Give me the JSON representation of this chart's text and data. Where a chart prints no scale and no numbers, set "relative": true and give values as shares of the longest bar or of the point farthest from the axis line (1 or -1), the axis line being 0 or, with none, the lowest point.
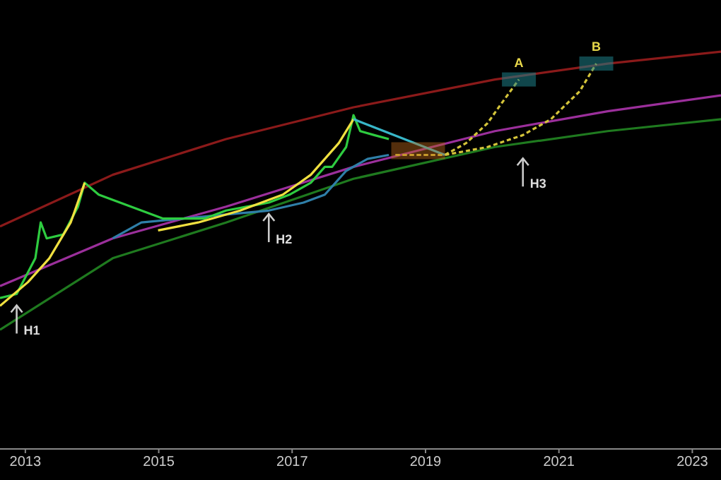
{
  "chart_data": {
    "type": "line",
    "relative": true,
    "xlim": [
      2012.62,
      2023.43
    ],
    "xticks": [
      2013,
      2015,
      2017,
      2019,
      2021,
      2023
    ],
    "series": [
      {
        "color": "#8b1a1a",
        "x": [
          2012.62,
          2014.31,
          2016.01,
          2017.92,
          2020.04,
          2021.73,
          2023.43
        ],
        "values": [
          0.56,
          0.69,
          0.78,
          0.86,
          0.93,
          0.97,
          1.0
        ]
      },
      {
        "color": "#9b2f9b",
        "x": [
          2012.62,
          2014.31,
          2016.01,
          2017.92,
          2020.04,
          2021.73,
          2023.43
        ],
        "values": [
          0.41,
          0.53,
          0.61,
          0.71,
          0.8,
          0.85,
          0.89
        ]
      },
      {
        "color": "#1f7a1f",
        "x": [
          2012.62,
          2014.31,
          2016.01,
          2017.92,
          2020.04,
          2021.73,
          2023.43
        ],
        "values": [
          0.3,
          0.48,
          0.57,
          0.68,
          0.76,
          0.8,
          0.83
        ]
      },
      {
        "color": "#2f7fa8",
        "x": [
          2014.31,
          2014.74,
          2015.37,
          2016.01,
          2016.65,
          2017.17,
          2017.49,
          2017.81,
          2018.13,
          2018.45
        ],
        "values": [
          0.53,
          0.57,
          0.58,
          0.59,
          0.6,
          0.62,
          0.64,
          0.7,
          0.73,
          0.74
        ]
      },
      {
        "color": "#2ecc40",
        "x": [
          2012.62,
          2012.87,
          2013.15,
          2013.23,
          2013.32,
          2013.57,
          2013.79,
          2013.89,
          2014.1,
          2014.42,
          2014.74,
          2015.06,
          2015.37,
          2015.69,
          2016.01,
          2016.33,
          2016.65,
          2016.96,
          2017.28,
          2017.49,
          2017.6,
          2017.81,
          2017.92,
          2018.02,
          2018.23,
          2018.45
        ],
        "values": [
          0.38,
          0.39,
          0.48,
          0.57,
          0.53,
          0.54,
          0.61,
          0.67,
          0.64,
          0.62,
          0.6,
          0.58,
          0.58,
          0.58,
          0.6,
          0.61,
          0.62,
          0.64,
          0.67,
          0.71,
          0.71,
          0.76,
          0.84,
          0.8,
          0.79,
          0.78
        ]
      },
      {
        "color": "#f0e040",
        "x": [
          2012.62,
          2013.04,
          2013.36,
          2013.68,
          2013.89,
          2014.4,
          2014.99,
          2015.59,
          2016.22,
          2016.86,
          2017.28,
          2017.7,
          2017.92
        ],
        "values": [
          0.36,
          0.42,
          0.48,
          0.57,
          0.67,
          null,
          0.55,
          0.57,
          0.6,
          0.64,
          0.69,
          0.77,
          0.83
        ]
      },
      {
        "color": "#38b6c8",
        "x": [
          2017.92,
          2019.29
        ],
        "values": [
          0.83,
          0.74
        ]
      },
      {
        "color": "#d4c43a",
        "line_style": "dashed",
        "x": [
          2018.55,
          2018.98,
          2019.29,
          2019.61,
          2019.93,
          2020.14,
          2020.4
        ],
        "values": [
          0.74,
          0.74,
          0.74,
          0.77,
          0.82,
          0.87,
          0.93
        ]
      },
      {
        "color": "#d4c43a",
        "line_style": "dashed",
        "x": [
          2018.55,
          2019.29,
          2019.93,
          2020.46,
          2020.88,
          2021.31,
          2021.56
        ],
        "values": [
          0.74,
          0.74,
          0.76,
          0.79,
          0.83,
          0.9,
          0.97
        ]
      }
    ],
    "annotations": [
      {
        "text": "H1",
        "x": 2012.87,
        "y": 0.39
      },
      {
        "text": "H2",
        "x": 2016.65,
        "y": 0.62
      },
      {
        "text": "H3",
        "x": 2020.46,
        "y": 0.76
      },
      {
        "text": "A",
        "x": 2020.4,
        "y": 0.93
      },
      {
        "text": "B",
        "x": 2021.56,
        "y": 0.97
      }
    ]
  }
}
